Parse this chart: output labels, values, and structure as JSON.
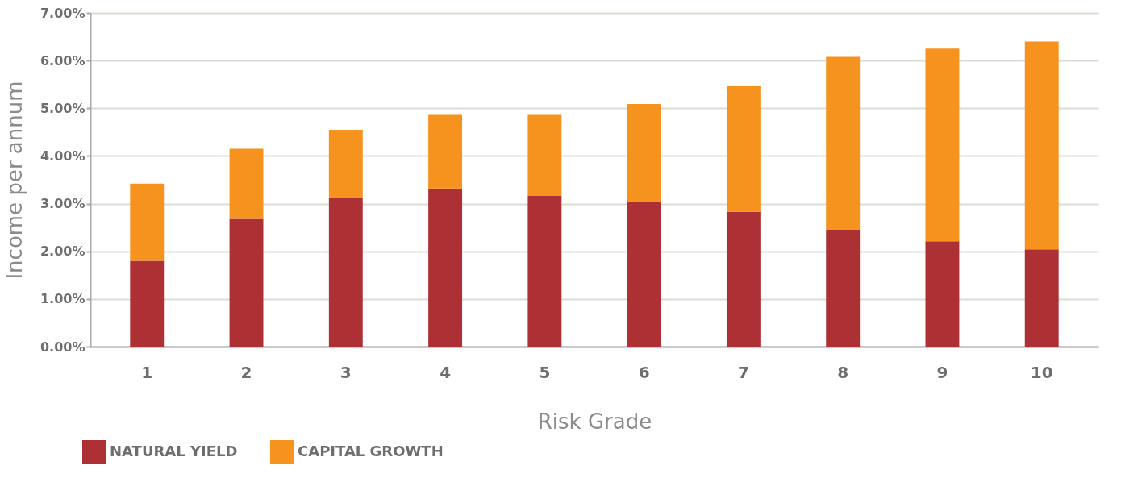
{
  "chart_data": {
    "type": "bar",
    "stacked": true,
    "xlabel": "Risk Grade",
    "ylabel": "Income per annum",
    "categories": [
      "1",
      "2",
      "3",
      "4",
      "5",
      "6",
      "7",
      "8",
      "9",
      "10"
    ],
    "series": [
      {
        "name": "NATURAL YIELD",
        "color": "#ad3034",
        "values": [
          1.8,
          2.68,
          3.12,
          3.32,
          3.17,
          3.05,
          2.83,
          2.46,
          2.21,
          2.04
        ]
      },
      {
        "name": "CAPITAL GROWTH",
        "color": "#f6921e",
        "values": [
          1.62,
          1.47,
          1.43,
          1.54,
          1.69,
          2.04,
          2.63,
          3.62,
          4.04,
          4.36
        ]
      }
    ],
    "ylim": [
      0,
      7
    ],
    "yticks": [
      {
        "value": 0,
        "label": "0.00%"
      },
      {
        "value": 1,
        "label": "1.00%"
      },
      {
        "value": 2,
        "label": "2.00%"
      },
      {
        "value": 3,
        "label": "3.00%"
      },
      {
        "value": 4,
        "label": "4.00%"
      },
      {
        "value": 5,
        "label": "5.00%"
      },
      {
        "value": 6,
        "label": "6.00%"
      },
      {
        "value": 7,
        "label": "7.00%"
      }
    ],
    "grid": "y",
    "legend": "bottom left"
  }
}
